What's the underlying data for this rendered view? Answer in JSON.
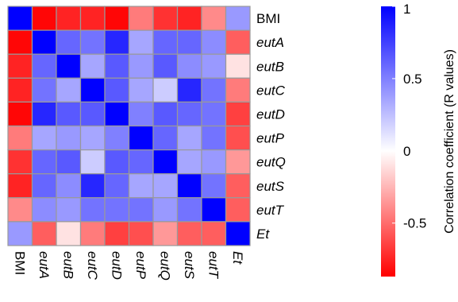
{
  "chart_data": {
    "type": "heatmap",
    "title": "",
    "rows": [
      "BMI",
      "eutA",
      "eutB",
      "eutC",
      "eutD",
      "eutP",
      "eutQ",
      "eutS",
      "eutT",
      "Et"
    ],
    "columns": [
      "BMI",
      "eutA",
      "eutB",
      "eutC",
      "eutD",
      "eutP",
      "eutQ",
      "eutS",
      "eutT",
      "Et"
    ],
    "italic_labels": [
      "eutA",
      "eutB",
      "eutC",
      "eutD",
      "eutP",
      "eutQ",
      "eutS",
      "eutT",
      "Et"
    ],
    "values": [
      [
        1.0,
        -0.85,
        -0.75,
        -0.75,
        -0.85,
        -0.45,
        -0.7,
        -0.75,
        -0.4,
        0.4
      ],
      [
        -0.85,
        1.0,
        0.6,
        0.55,
        0.85,
        0.35,
        0.6,
        0.6,
        0.45,
        -0.55
      ],
      [
        -0.75,
        0.6,
        1.0,
        0.35,
        0.65,
        0.4,
        0.65,
        0.45,
        0.4,
        -0.1
      ],
      [
        -0.75,
        0.55,
        0.35,
        1.0,
        0.65,
        0.35,
        0.2,
        0.85,
        0.55,
        -0.45
      ],
      [
        -0.85,
        0.85,
        0.65,
        0.65,
        1.0,
        0.5,
        0.65,
        0.6,
        0.55,
        -0.65
      ],
      [
        -0.45,
        0.35,
        0.4,
        0.35,
        0.5,
        1.0,
        0.6,
        0.35,
        0.55,
        -0.6
      ],
      [
        -0.7,
        0.6,
        0.65,
        0.2,
        0.65,
        0.6,
        1.0,
        0.35,
        0.4,
        -0.35
      ],
      [
        -0.75,
        0.6,
        0.45,
        0.85,
        0.6,
        0.35,
        0.35,
        1.0,
        0.55,
        -0.55
      ],
      [
        -0.4,
        0.45,
        0.4,
        0.55,
        0.55,
        0.55,
        0.4,
        0.55,
        1.0,
        -0.55
      ],
      [
        0.4,
        -0.55,
        -0.1,
        -0.45,
        -0.65,
        -0.6,
        -0.35,
        -0.55,
        -0.55,
        1.0
      ]
    ],
    "colorbar": {
      "title": "Correlation coefficient (R values)",
      "range": [
        -0.87,
        1.0
      ],
      "tick_values": [
        1,
        0.5,
        0,
        -0.5
      ],
      "tick_labels": [
        "1",
        "0.5",
        "0",
        "-0.5"
      ],
      "colors": {
        "low": "#ff0000",
        "mid": "#ffffff",
        "high": "#0000ff"
      }
    },
    "grid_color": "#999999",
    "legend_position": "right"
  }
}
